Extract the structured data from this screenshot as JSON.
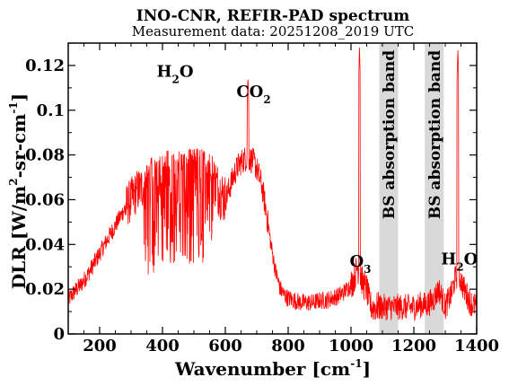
{
  "chart_data": {
    "type": "line",
    "title": "INO-CNR, REFIR-PAD spectrum",
    "subtitle": "Measurement data: 20251208_2019 UTC",
    "xlabel": "Wavenumber [cm-1]",
    "xlabel_parts": {
      "main": "Wavenumber [cm",
      "sup": "-1",
      "close": "]"
    },
    "ylabel": "DLR [W/m2-sr-cm-1]",
    "ylabel_parts": {
      "a": "DLR [W/m",
      "sup1": "2",
      "b": "-sr-cm",
      "sup2": "-1",
      "c": "]"
    },
    "xlim": [
      100,
      1400
    ],
    "ylim": [
      0,
      0.13
    ],
    "x_ticks": [
      200,
      400,
      600,
      800,
      1000,
      1200,
      1400
    ],
    "x_tick_labels": [
      "200",
      "400",
      "600",
      "800",
      "1000",
      "1200",
      "1400"
    ],
    "y_ticks": [
      0,
      0.02,
      0.04,
      0.06,
      0.08,
      0.1,
      0.12
    ],
    "y_tick_labels": [
      "0",
      "0.02",
      "0.04",
      "0.06",
      "0.08",
      "0.1",
      "0.12"
    ],
    "grid": false,
    "line_color": "#ff0000",
    "band_color": "#d9d9d9",
    "series": [
      {
        "x": [
          100,
          120,
          140,
          160,
          180,
          200,
          220,
          240,
          260,
          280,
          300,
          320,
          340,
          360,
          380,
          400,
          420,
          440,
          460,
          480,
          500,
          520,
          540,
          560,
          580,
          600,
          615,
          630,
          645,
          660,
          672,
          680,
          690,
          700,
          715,
          730,
          745,
          760,
          775,
          790,
          800,
          820,
          840,
          860,
          880,
          900,
          920,
          940,
          960,
          980,
          1000,
          1010,
          1020,
          1030,
          1040,
          1050,
          1060,
          1070,
          1080,
          1090,
          1100,
          1120,
          1140,
          1160,
          1180,
          1200,
          1220,
          1240,
          1260,
          1280,
          1300,
          1320,
          1330,
          1340,
          1350,
          1360,
          1380,
          1400
        ],
        "y": [
          0.015,
          0.019,
          0.022,
          0.026,
          0.031,
          0.036,
          0.041,
          0.046,
          0.051,
          0.056,
          0.06,
          0.064,
          0.066,
          0.068,
          0.07,
          0.071,
          0.072,
          0.072,
          0.072,
          0.073,
          0.073,
          0.073,
          0.072,
          0.07,
          0.064,
          0.06,
          0.066,
          0.072,
          0.076,
          0.078,
          0.079,
          0.078,
          0.077,
          0.074,
          0.067,
          0.055,
          0.04,
          0.028,
          0.02,
          0.017,
          0.016,
          0.015,
          0.014,
          0.014,
          0.014,
          0.015,
          0.015,
          0.016,
          0.017,
          0.019,
          0.022,
          0.025,
          0.03,
          0.026,
          0.022,
          0.02,
          0.013,
          0.012,
          0.012,
          0.012,
          0.012,
          0.012,
          0.012,
          0.012,
          0.012,
          0.012,
          0.013,
          0.013,
          0.015,
          0.02,
          0.012,
          0.018,
          0.024,
          0.027,
          0.024,
          0.02,
          0.014,
          0.012
        ]
      }
    ],
    "line_noise": [
      {
        "x": [
          100,
          280
        ],
        "amp": 0.004
      },
      {
        "x": [
          280,
          340
        ],
        "amp": 0.01
      },
      {
        "x": [
          340,
          560
        ],
        "amp": 0.035
      },
      {
        "x": [
          560,
          600
        ],
        "amp": 0.012
      },
      {
        "x": [
          600,
          740
        ],
        "amp": 0.006
      },
      {
        "x": [
          740,
          1000
        ],
        "amp": 0.004
      },
      {
        "x": [
          1000,
          1090
        ],
        "amp": 0.007
      },
      {
        "x": [
          1090,
          1400
        ],
        "amp": 0.006
      }
    ],
    "spikes": [
      {
        "x": 672,
        "y": 0.116
      },
      {
        "x": 1027,
        "y": 0.128
      },
      {
        "x": 1340,
        "y": 0.128
      }
    ],
    "bands": [
      {
        "x": [
          1090,
          1150
        ],
        "label": "BS absorption band"
      },
      {
        "x": [
          1235,
          1295
        ],
        "label": "BS absorption band"
      }
    ],
    "annotations": [
      {
        "x": 440,
        "y": 0.115,
        "main": "H",
        "sub": "2",
        "tail": "O"
      },
      {
        "x": 690,
        "y": 0.106,
        "main": "CO",
        "sub": "2",
        "tail": ""
      },
      {
        "x": 1030,
        "y": 0.03,
        "main": "O",
        "sub": "3",
        "tail": ""
      },
      {
        "x": 1345,
        "y": 0.031,
        "main": "H",
        "sub": "2",
        "tail": "O"
      }
    ]
  }
}
